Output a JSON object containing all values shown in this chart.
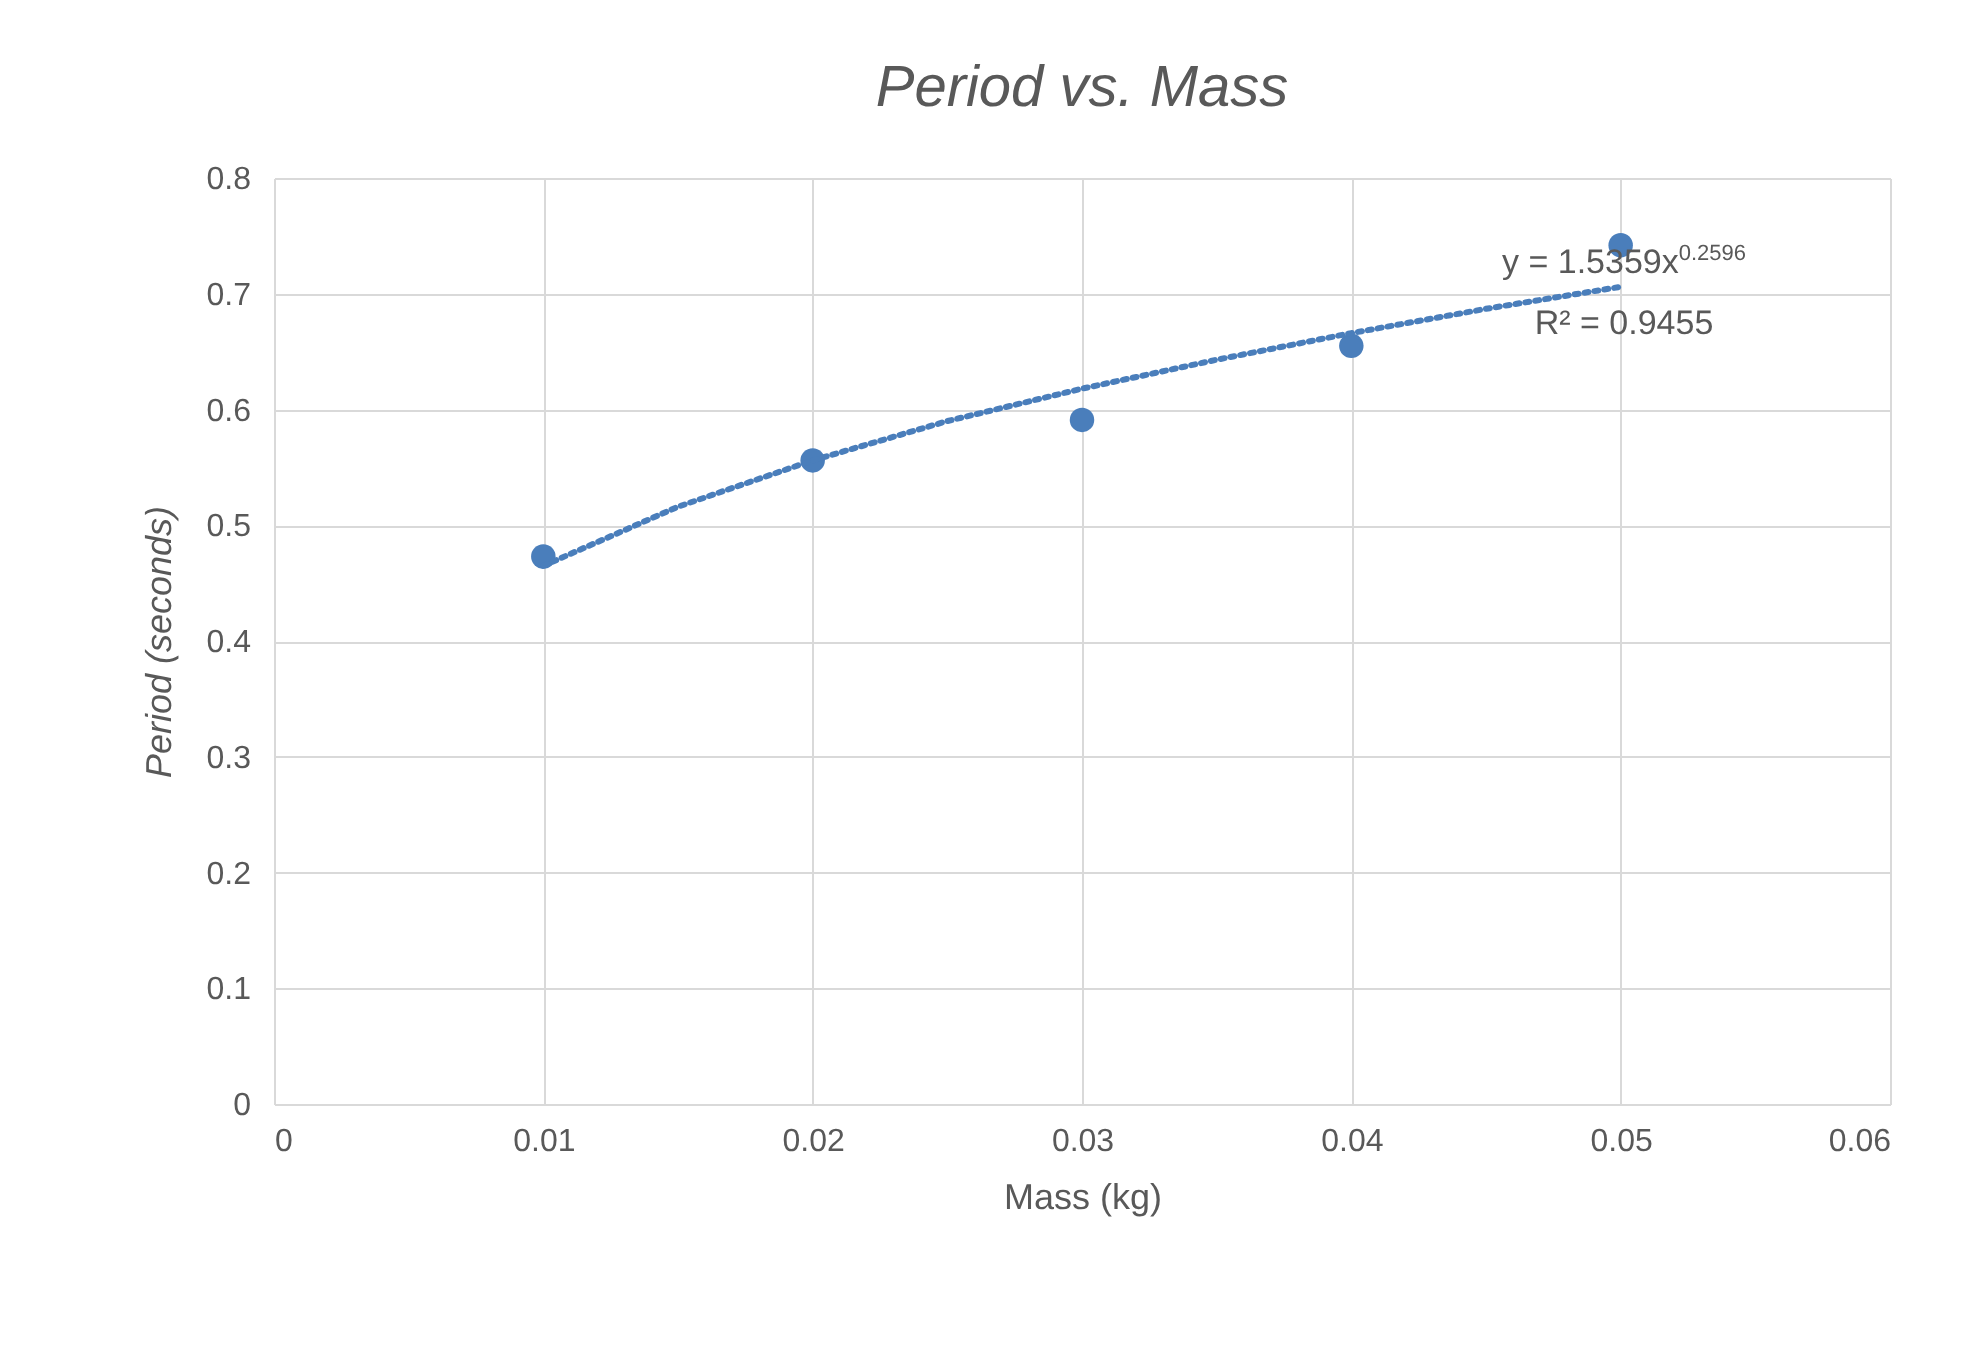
{
  "chart_data": {
    "type": "scatter",
    "title": "Period vs. Mass",
    "xlabel": "Mass (kg)",
    "ylabel": "Period (seconds)",
    "series": [
      {
        "type": "scatter",
        "color": "#4a7ebb",
        "marker": "circle",
        "x": [
          0.01,
          0.02,
          0.03,
          0.04,
          0.05
        ],
        "values": [
          0.473,
          0.556,
          0.591,
          0.655,
          0.742
        ]
      },
      {
        "type": "line",
        "color": "#4a7ebb",
        "line_style": "dotted",
        "marker": "none",
        "x": [
          0.01,
          0.015,
          0.02,
          0.025,
          0.03,
          0.035,
          0.04,
          0.045,
          0.05
        ],
        "values": [
          0.465,
          0.516,
          0.556,
          0.59,
          0.618,
          0.643,
          0.666,
          0.687,
          0.706
        ]
      }
    ],
    "xlim": [
      0,
      0.06
    ],
    "xticks": [
      0,
      0.01,
      0.02,
      0.03,
      0.04,
      0.05,
      0.06
    ],
    "ylim": [
      0,
      0.8
    ],
    "yticks": [
      0,
      0.1,
      0.2,
      0.3,
      0.4,
      0.5,
      0.6,
      0.7,
      0.8
    ],
    "grid": true,
    "legend": false,
    "annotations": [
      "y = 1.5359x$^{0.2596}$",
      "R² = 0.9455"
    ]
  }
}
